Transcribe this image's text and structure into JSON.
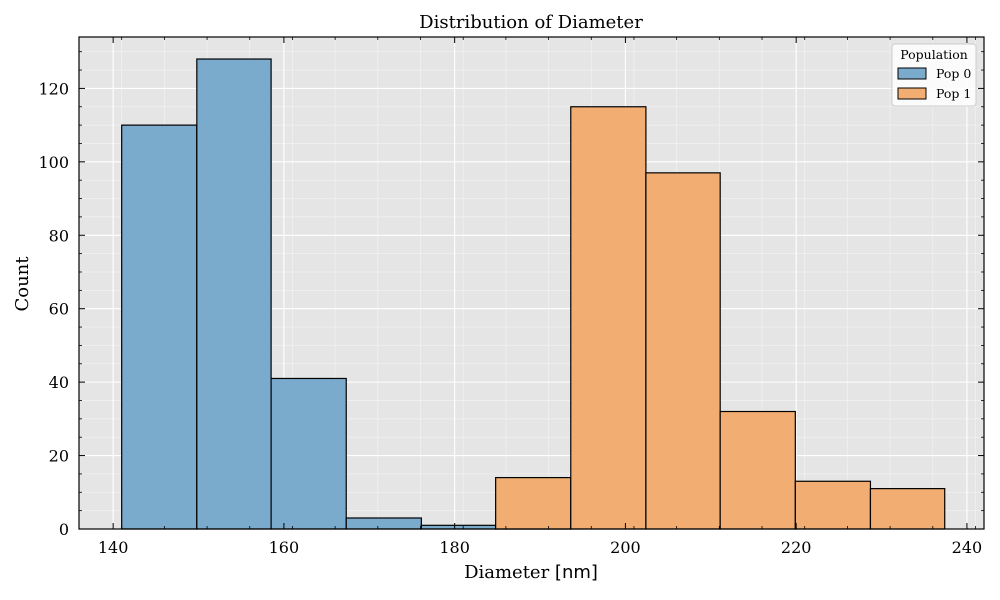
{
  "chart_data": {
    "type": "bar",
    "title": "Distribution of Diameter",
    "xlabel_text": "Diameter ",
    "xlabel_unit": "[nm]",
    "ylabel": "Count",
    "xlim": [
      136,
      242
    ],
    "ylim": [
      0,
      134
    ],
    "xticks": [
      140,
      160,
      180,
      200,
      220,
      240
    ],
    "yticks": [
      0,
      20,
      40,
      60,
      80,
      100,
      120
    ],
    "grid": true,
    "legend": {
      "title": "Population",
      "placement": "top-right"
    },
    "series": [
      {
        "name": "Pop 0",
        "color": "#7aaacc",
        "bins": [
          {
            "x0": 141.0,
            "x1": 149.8,
            "value": 110
          },
          {
            "x0": 149.8,
            "x1": 158.5,
            "value": 128
          },
          {
            "x0": 158.5,
            "x1": 167.3,
            "value": 41
          },
          {
            "x0": 167.3,
            "x1": 176.1,
            "value": 3
          },
          {
            "x0": 176.1,
            "x1": 184.8,
            "value": 1
          },
          {
            "x0": 184.8,
            "x1": 193.6,
            "value": 1
          }
        ]
      },
      {
        "name": "Pop 1",
        "color": "#f2ae72",
        "bins": [
          {
            "x0": 184.8,
            "x1": 193.6,
            "value": 14
          },
          {
            "x0": 193.6,
            "x1": 202.4,
            "value": 115
          },
          {
            "x0": 202.4,
            "x1": 211.1,
            "value": 97
          },
          {
            "x0": 211.1,
            "x1": 219.9,
            "value": 32
          },
          {
            "x0": 219.9,
            "x1": 228.7,
            "value": 13
          },
          {
            "x0": 228.7,
            "x1": 237.4,
            "value": 11
          }
        ]
      }
    ]
  }
}
